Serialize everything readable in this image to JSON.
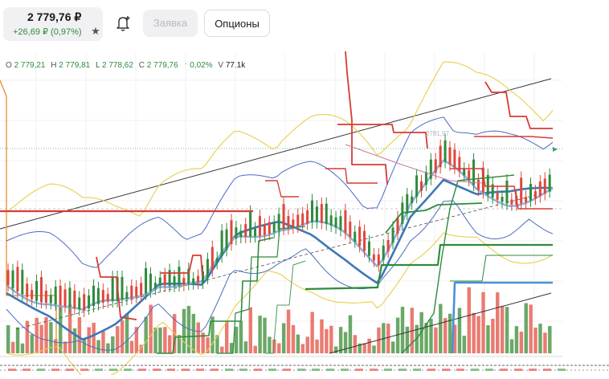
{
  "header": {
    "price": "2 779,76 ₽",
    "change": "+26,69 ₽ (0,97%)",
    "star_icon": "star-icon",
    "bell_icon": "bell-plus-icon",
    "order_label": "Заявка",
    "options_label": "Опционы"
  },
  "ohlc": {
    "o_label": "O",
    "o_value": "2 779,21",
    "h_label": "H",
    "h_value": "2 779,81",
    "l_label": "L",
    "l_value": "2 778,62",
    "c_label": "C",
    "c_value": "2 779,76",
    "pct": "↑ 0,02%",
    "v_label": "V",
    "v_value": "77,1k"
  },
  "chart_data": {
    "type": "candlestick",
    "price_marker": "2781,97",
    "colors": {
      "up": "#2e8b3e",
      "down": "#e0463c",
      "volume_up": "#6aa867",
      "volume_down": "#ea7b72",
      "ma_blue": "#3b78b8",
      "ma_light": "#8fb6df",
      "band": "#e7cf4a",
      "band_blue": "#4c6cc4"
    }
  }
}
